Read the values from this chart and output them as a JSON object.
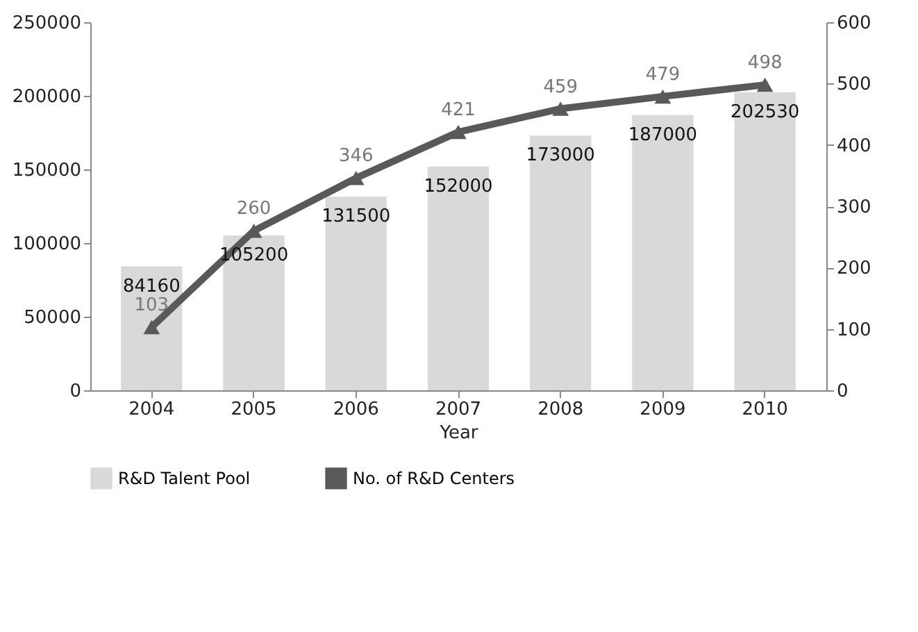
{
  "chart_data": {
    "type": "bar",
    "categories": [
      "2004",
      "2005",
      "2006",
      "2007",
      "2008",
      "2009",
      "2010"
    ],
    "xlabel": "Year",
    "series": [
      {
        "name": "R&D Talent Pool",
        "type": "bar",
        "color": "#d9d9d9",
        "values": [
          84160,
          105200,
          131500,
          152000,
          173000,
          187000,
          202530
        ]
      },
      {
        "name": "No. of R&D Centers",
        "type": "line",
        "axis": "y2",
        "color": "#595959",
        "values": [
          103,
          260,
          346,
          421,
          459,
          479,
          498
        ]
      }
    ],
    "ylim": [
      0,
      250000
    ],
    "yticks": [
      0,
      50000,
      100000,
      150000,
      200000,
      250000
    ],
    "y2lim": [
      0,
      600
    ],
    "y2ticks": [
      0,
      100,
      200,
      300,
      400,
      500,
      600
    ],
    "data_labels": true,
    "legend": "bottom",
    "marker": "triangle",
    "grid": false
  }
}
